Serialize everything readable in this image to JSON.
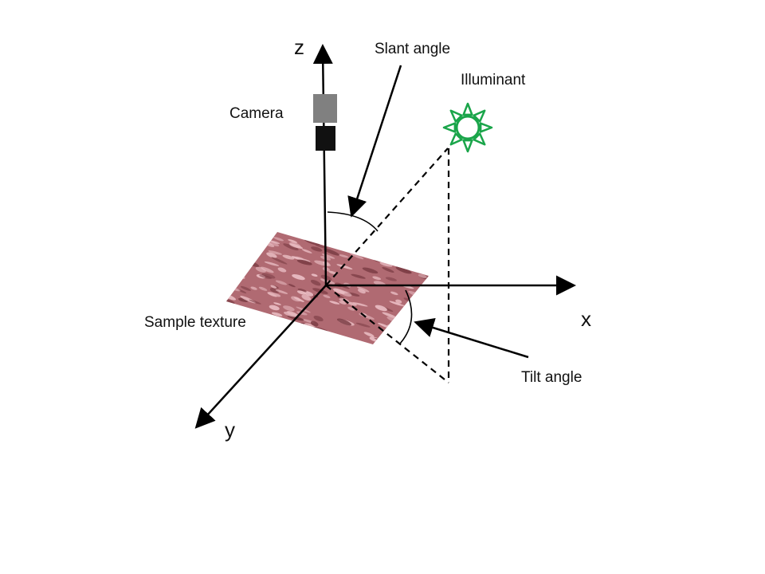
{
  "labels": {
    "z_axis": "z",
    "x_axis": "x",
    "y_axis": "y",
    "camera": "Camera",
    "slant_angle": "Slant angle",
    "illuminant": "Illuminant",
    "sample_texture": "Sample texture",
    "tilt_angle": "Tilt angle"
  },
  "colors": {
    "background": "#ffffff",
    "lines": "#000000",
    "camera_body": "#808080",
    "camera_lens": "#111111",
    "illuminant": "#1aa54a",
    "texture_base": "#b06a72",
    "texture_light": "#e9bcc2",
    "texture_dark": "#7c3d45"
  },
  "icons": {
    "illuminant": "sun-icon",
    "camera": "camera-icon"
  }
}
